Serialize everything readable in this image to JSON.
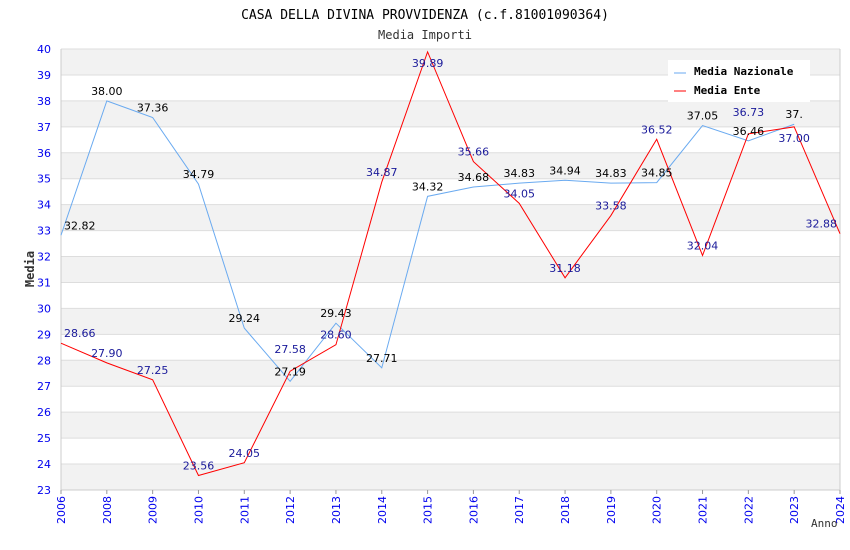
{
  "chart_data": {
    "type": "line",
    "title": "CASA DELLA DIVINA PROVVIDENZA (c.f.81001090364)",
    "subtitle": "Media Importi",
    "xlabel": "Anno",
    "ylabel": "Media",
    "ylim": [
      23,
      40
    ],
    "yticks": [
      "23",
      "24",
      "25",
      "26",
      "27",
      "28",
      "29",
      "30",
      "31",
      "32",
      "33",
      "34",
      "35",
      "36",
      "37",
      "38",
      "39",
      "40"
    ],
    "categories": [
      "2006",
      "2008",
      "2009",
      "2010",
      "2011",
      "2012",
      "2013",
      "2014",
      "2015",
      "2016",
      "2017",
      "2018",
      "2019",
      "2020",
      "2021",
      "2022",
      "2023",
      "2024"
    ],
    "legend_position": "top-right",
    "series": [
      {
        "name": "Media Nazionale",
        "color": "#6aaaf0",
        "label_color": "#000000",
        "values": [
          32.82,
          38.0,
          37.36,
          34.79,
          29.24,
          27.19,
          29.43,
          27.71,
          34.32,
          34.68,
          34.83,
          34.94,
          34.83,
          34.85,
          37.05,
          36.46,
          37.1,
          null
        ],
        "labels": [
          "32.82",
          "38.00",
          "37.36",
          "34.79",
          "29.24",
          "27.19",
          "29.43",
          "27.71",
          "34.32",
          "34.68",
          "34.83",
          "34.94",
          "34.83",
          "34.85",
          "37.05",
          "36.46",
          "37.",
          null
        ]
      },
      {
        "name": "Media Ente",
        "color": "#ff0000",
        "label_color": "#1a1a9a",
        "values": [
          28.66,
          27.9,
          27.25,
          23.56,
          24.05,
          27.58,
          28.6,
          34.87,
          39.89,
          35.66,
          34.05,
          31.18,
          33.58,
          36.52,
          32.04,
          36.73,
          37.0,
          32.88
        ],
        "labels": [
          "28.66",
          "27.90",
          "27.25",
          "23.56",
          "24.05",
          "27.58",
          "28.60",
          "34.87",
          "39.89",
          "35.66",
          "34.05",
          "31.18",
          "33.58",
          "36.52",
          "32.04",
          "36.73",
          "37.00",
          "32.88"
        ]
      }
    ]
  }
}
